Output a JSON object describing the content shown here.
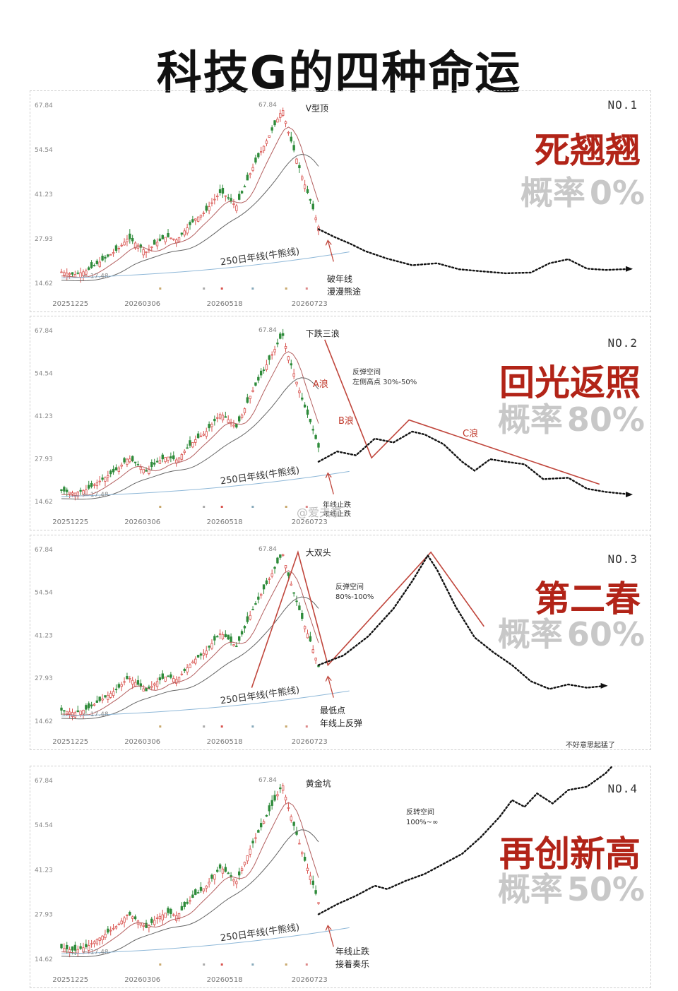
{
  "title": "科技G的四种命运",
  "watermark": "@爱夫享",
  "chart_data": [
    {
      "type": "line",
      "panel": "NO.1",
      "scenario": "死翘翘",
      "probability_label": "概率",
      "probability": "0%",
      "y_ticks": [
        "67.84",
        "54.54",
        "41.23",
        "27.93",
        "14.62"
      ],
      "x_ticks": [
        "20251225",
        "20260306",
        "20260518",
        "20260723"
      ],
      "ylim": [
        14.62,
        67.84
      ],
      "peak_label": "67.84",
      "low_label": "17.48",
      "pattern_label": "V型顶",
      "ma_label": "250日年线(牛熊线)",
      "annotation": "破年线 漫漫熊途",
      "projection": [
        [
          0.0,
          30.8
        ],
        [
          0.05,
          28.5
        ],
        [
          0.1,
          26.5
        ],
        [
          0.15,
          24.2
        ],
        [
          0.22,
          22.0
        ],
        [
          0.3,
          20.0
        ],
        [
          0.38,
          20.6
        ],
        [
          0.45,
          18.8
        ],
        [
          0.52,
          18.2
        ],
        [
          0.6,
          17.6
        ],
        [
          0.68,
          17.8
        ],
        [
          0.74,
          20.6
        ],
        [
          0.8,
          21.8
        ],
        [
          0.86,
          19.0
        ],
        [
          0.92,
          18.6
        ],
        [
          1.0,
          18.9
        ]
      ],
      "trend_lines": []
    },
    {
      "type": "line",
      "panel": "NO.2",
      "scenario": "回光返照",
      "probability_label": "概率",
      "probability": "80%",
      "y_ticks": [
        "67.84",
        "54.54",
        "41.23",
        "27.93",
        "14.62"
      ],
      "x_ticks": [
        "20251225",
        "20260306",
        "20260518",
        "20260723"
      ],
      "ylim": [
        14.62,
        67.84
      ],
      "peak_label": "67.84",
      "low_label": "17.48",
      "pattern_label": "下跌三浪",
      "ma_label": "250日年线(牛熊线)",
      "annotation": "反弹空间 左侧高点 30%-50%",
      "annotation2": "年线止跌 年线止跌",
      "wave_labels": [
        "A浪",
        "B浪",
        "C浪"
      ],
      "projection": [
        [
          0.0,
          27.0
        ],
        [
          0.06,
          30.2
        ],
        [
          0.12,
          29.0
        ],
        [
          0.18,
          34.2
        ],
        [
          0.24,
          33.0
        ],
        [
          0.3,
          36.4
        ],
        [
          0.34,
          35.5
        ],
        [
          0.4,
          32.5
        ],
        [
          0.46,
          27.0
        ],
        [
          0.5,
          24.2
        ],
        [
          0.55,
          27.8
        ],
        [
          0.6,
          27.0
        ],
        [
          0.66,
          26.2
        ],
        [
          0.72,
          21.6
        ],
        [
          0.8,
          22.0
        ],
        [
          0.86,
          18.6
        ],
        [
          0.92,
          17.6
        ],
        [
          1.0,
          16.8
        ]
      ],
      "trend_lines": [
        [
          [
            0.02,
            65.0
          ],
          [
            0.17,
            28.2
          ],
          [
            0.29,
            40.0
          ],
          [
            0.9,
            20.0
          ]
        ]
      ]
    },
    {
      "type": "line",
      "panel": "NO.3",
      "scenario": "第二春",
      "probability_label": "概率",
      "probability": "60%",
      "y_ticks": [
        "67.84",
        "54.54",
        "41.23",
        "27.93",
        "14.62"
      ],
      "x_ticks": [
        "20251225",
        "20260306",
        "20260518",
        "20260723"
      ],
      "ylim": [
        14.62,
        67.84
      ],
      "peak_label": "67.84",
      "low_label": "17.48",
      "pattern_label": "大双头",
      "ma_label": "250日年线(牛熊线)",
      "annotation": "反弹空间 80%-100%",
      "annotation2": "最低点 年线上反弹",
      "projection": [
        [
          0.0,
          32.0
        ],
        [
          0.08,
          35.0
        ],
        [
          0.16,
          41.0
        ],
        [
          0.24,
          49.5
        ],
        [
          0.3,
          58.0
        ],
        [
          0.35,
          66.0
        ],
        [
          0.38,
          61.5
        ],
        [
          0.44,
          50.0
        ],
        [
          0.5,
          40.6
        ],
        [
          0.56,
          36.0
        ],
        [
          0.62,
          32.0
        ],
        [
          0.68,
          27.0
        ],
        [
          0.74,
          24.6
        ],
        [
          0.8,
          26.0
        ],
        [
          0.86,
          25.0
        ],
        [
          0.92,
          25.6
        ]
      ],
      "trend_lines": [
        [
          [
            -0.26,
            25.0
          ],
          [
            -0.08,
            67.0
          ],
          [
            0.03,
            32.0
          ],
          [
            0.36,
            67.0
          ],
          [
            0.53,
            44.0
          ]
        ]
      ]
    },
    {
      "type": "line",
      "panel": "NO.4",
      "scenario": "再创新高",
      "probability_label": "概率",
      "probability": "50%",
      "y_ticks": [
        "67.84",
        "54.54",
        "41.23",
        "27.93",
        "14.62"
      ],
      "x_ticks": [
        "20251225",
        "20260306",
        "20260518",
        "20260723"
      ],
      "ylim": [
        14.62,
        67.84
      ],
      "peak_label": "67.84",
      "low_label": "17.48",
      "pattern_label": "黄金坑",
      "ma_label": "250日年线(牛熊线)",
      "annotation": "反转空间 100%~∞",
      "annotation2": "年线止跌 接着奏乐",
      "top_note": "不好意思起猛了",
      "projection": [
        [
          0.0,
          28.0
        ],
        [
          0.06,
          31.0
        ],
        [
          0.12,
          33.5
        ],
        [
          0.18,
          36.5
        ],
        [
          0.22,
          35.5
        ],
        [
          0.28,
          38.0
        ],
        [
          0.34,
          40.0
        ],
        [
          0.4,
          43.0
        ],
        [
          0.46,
          46.0
        ],
        [
          0.52,
          51.0
        ],
        [
          0.58,
          57.0
        ],
        [
          0.62,
          62.0
        ],
        [
          0.66,
          60.0
        ],
        [
          0.7,
          64.0
        ],
        [
          0.75,
          61.0
        ],
        [
          0.8,
          65.0
        ],
        [
          0.86,
          66.0
        ],
        [
          0.92,
          70.0
        ],
        [
          0.98,
          76.0
        ]
      ],
      "trend_lines": []
    }
  ]
}
